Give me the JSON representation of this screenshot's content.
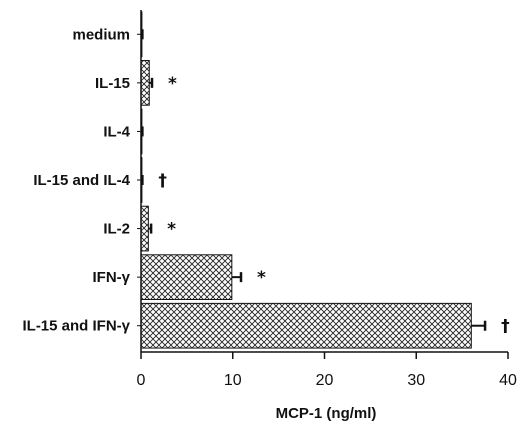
{
  "chart_data": {
    "type": "bar",
    "orientation": "horizontal",
    "categories": [
      "medium",
      "IL-15",
      "IL-4",
      "IL-15 and IL-4",
      "IL-2",
      "IFN-γ",
      "IL-15 and IFN-γ"
    ],
    "values": [
      0.1,
      0.9,
      0.1,
      0.1,
      0.8,
      9.9,
      36.0
    ],
    "errors": [
      0.05,
      0.3,
      0.05,
      0.05,
      0.3,
      1.0,
      1.5
    ],
    "annotations": [
      "",
      "*",
      "",
      "†",
      "*",
      "*",
      "†"
    ],
    "xlabel": "MCP-1 (ng/ml)",
    "xlim": [
      0,
      40
    ],
    "xticks": [
      0,
      10,
      20,
      30,
      40
    ],
    "grid": false,
    "bar_pattern": "crosshatch"
  }
}
